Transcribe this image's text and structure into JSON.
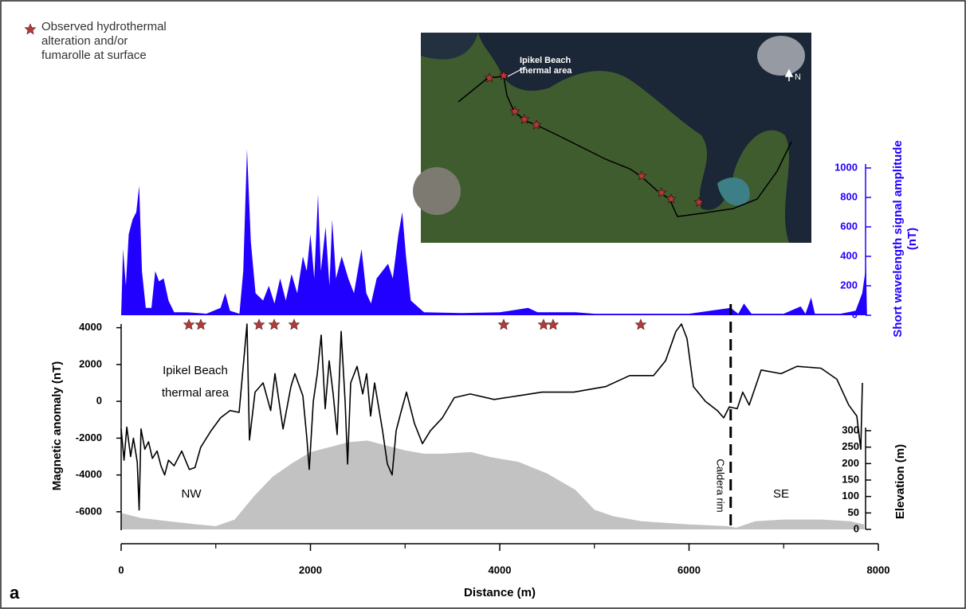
{
  "chart_data": [
    {
      "type": "line",
      "color": "#000000",
      "xlabel": "Distance (m)",
      "ylabel": "Magnetic anomaly (nT)",
      "xlim": [
        0,
        8000
      ],
      "xticks": [
        0,
        2000,
        4000,
        6000,
        8000
      ],
      "xminorticks": [
        1000,
        3000,
        5000,
        7000
      ],
      "ylim": [
        -7000,
        4200
      ],
      "yticks": [
        -6000,
        -4000,
        -2000,
        0,
        2000,
        4000
      ],
      "x": [
        0,
        30,
        60,
        100,
        130,
        170,
        190,
        210,
        250,
        290,
        330,
        380,
        420,
        460,
        500,
        560,
        640,
        720,
        780,
        840,
        950,
        1050,
        1150,
        1246,
        1330,
        1356,
        1415,
        1500,
        1580,
        1625,
        1710,
        1794,
        1836,
        1920,
        1962,
        1987,
        2030,
        2072,
        2114,
        2156,
        2198,
        2240,
        2282,
        2324,
        2366,
        2392,
        2425,
        2493,
        2552,
        2594,
        2636,
        2678,
        2762,
        2813,
        2863,
        2905,
        2956,
        3015,
        3099,
        3183,
        3267,
        3394,
        3520,
        3688,
        3941,
        4194,
        4446,
        4783,
        5120,
        5373,
        5625,
        5752,
        5861,
        5920,
        5979,
        6046,
        6173,
        6299,
        6366,
        6425,
        6509,
        6568,
        6636,
        6762,
        6973,
        7141,
        7394,
        7562,
        7688,
        7773,
        7815,
        7832
      ],
      "values": [
        -1500,
        -3200,
        -1400,
        -3000,
        -2000,
        -3300,
        -5900,
        -1500,
        -2600,
        -2200,
        -3100,
        -2700,
        -3500,
        -4000,
        -3200,
        -3500,
        -2700,
        -3700,
        -3600,
        -2500,
        -1600,
        -900,
        -500,
        -600,
        4200,
        -2100,
        500,
        1000,
        -500,
        1500,
        -1500,
        800,
        1500,
        300,
        -2000,
        -3700,
        0,
        1500,
        3600,
        -400,
        2200,
        400,
        -1800,
        3800,
        0,
        -3400,
        1000,
        1900,
        400,
        1500,
        -800,
        1000,
        -1600,
        -3400,
        -4000,
        -1600,
        -600,
        500,
        -1200,
        -2300,
        -1600,
        -900,
        200,
        400,
        100,
        300,
        500,
        500,
        800,
        1400,
        1400,
        2200,
        3800,
        4200,
        3400,
        800,
        0,
        -500,
        -900,
        -300,
        -400,
        500,
        -200,
        1700,
        1500,
        1900,
        1800,
        1200,
        -200,
        -800,
        -2600,
        1000
      ],
      "caldera_rim_x": 6440
    },
    {
      "type": "area",
      "color": "#2200ff",
      "ylabel_lines": [
        "Short wavelength signal amplitude",
        "(nT)"
      ],
      "ylim": [
        0,
        1000
      ],
      "yticks": [
        0,
        200,
        400,
        600,
        800,
        1000
      ],
      "x": [
        0,
        20,
        50,
        80,
        120,
        160,
        190,
        220,
        260,
        320,
        360,
        400,
        450,
        500,
        560,
        700,
        900,
        1050,
        1100,
        1150,
        1250,
        1290,
        1330,
        1370,
        1420,
        1500,
        1560,
        1620,
        1680,
        1740,
        1800,
        1860,
        1920,
        1960,
        2000,
        2040,
        2080,
        2110,
        2160,
        2200,
        2230,
        2270,
        2330,
        2400,
        2460,
        2540,
        2590,
        2640,
        2700,
        2760,
        2820,
        2870,
        2930,
        2970,
        3010,
        3060,
        3200,
        3600,
        4000,
        4300,
        4400,
        4800,
        5000,
        6000,
        6440,
        6520,
        6580,
        6660,
        7000,
        7180,
        7230,
        7290,
        7330,
        7600,
        7760,
        7830,
        7870,
        7880
      ],
      "values": [
        0,
        450,
        200,
        550,
        650,
        700,
        880,
        300,
        50,
        50,
        300,
        230,
        250,
        100,
        20,
        20,
        10,
        50,
        150,
        30,
        10,
        300,
        1130,
        500,
        150,
        100,
        200,
        80,
        250,
        100,
        280,
        150,
        400,
        300,
        550,
        250,
        820,
        300,
        600,
        200,
        650,
        250,
        400,
        250,
        150,
        450,
        150,
        80,
        250,
        300,
        350,
        250,
        550,
        700,
        400,
        100,
        20,
        15,
        20,
        50,
        20,
        20,
        10,
        10,
        50,
        10,
        80,
        10,
        10,
        60,
        10,
        120,
        10,
        10,
        30,
        150,
        330,
        0
      ]
    },
    {
      "type": "area",
      "color": "#c2c2c2",
      "ylabel": "Elevation (m)",
      "ylim": [
        0,
        300
      ],
      "yticks": [
        0,
        50,
        100,
        150,
        200,
        250,
        300
      ],
      "x": [
        0,
        200,
        500,
        800,
        1000,
        1200,
        1400,
        1600,
        1800,
        2000,
        2200,
        2400,
        2600,
        2800,
        3000,
        3200,
        3400,
        3700,
        3900,
        4200,
        4500,
        4800,
        5000,
        5200,
        5500,
        6000,
        6400,
        6500,
        6700,
        7000,
        7400,
        7700,
        7850
      ],
      "values": [
        50,
        35,
        25,
        15,
        10,
        30,
        100,
        160,
        200,
        235,
        250,
        265,
        270,
        255,
        240,
        230,
        230,
        235,
        220,
        205,
        170,
        120,
        60,
        40,
        25,
        15,
        10,
        5,
        25,
        30,
        30,
        25,
        15
      ]
    }
  ],
  "markers": {
    "color": "#b23a3a",
    "label_lines": [
      "Observed hydrothermal",
      "alteration and/or",
      "fumarolle at surface"
    ],
    "x": [
      716,
      842,
      1457,
      1617,
      1827,
      4042,
      4463,
      4564,
      5490
    ]
  },
  "annotations": {
    "thermal_area_lines": [
      "Ipikel Beach",
      "thermal area"
    ],
    "nw": "NW",
    "se": "SE",
    "caldera_rim": "Caldera rim",
    "panel_label": "a"
  },
  "inset": {
    "labels": [
      "Ipikel Beach",
      "thermal area"
    ],
    "north": "N"
  }
}
